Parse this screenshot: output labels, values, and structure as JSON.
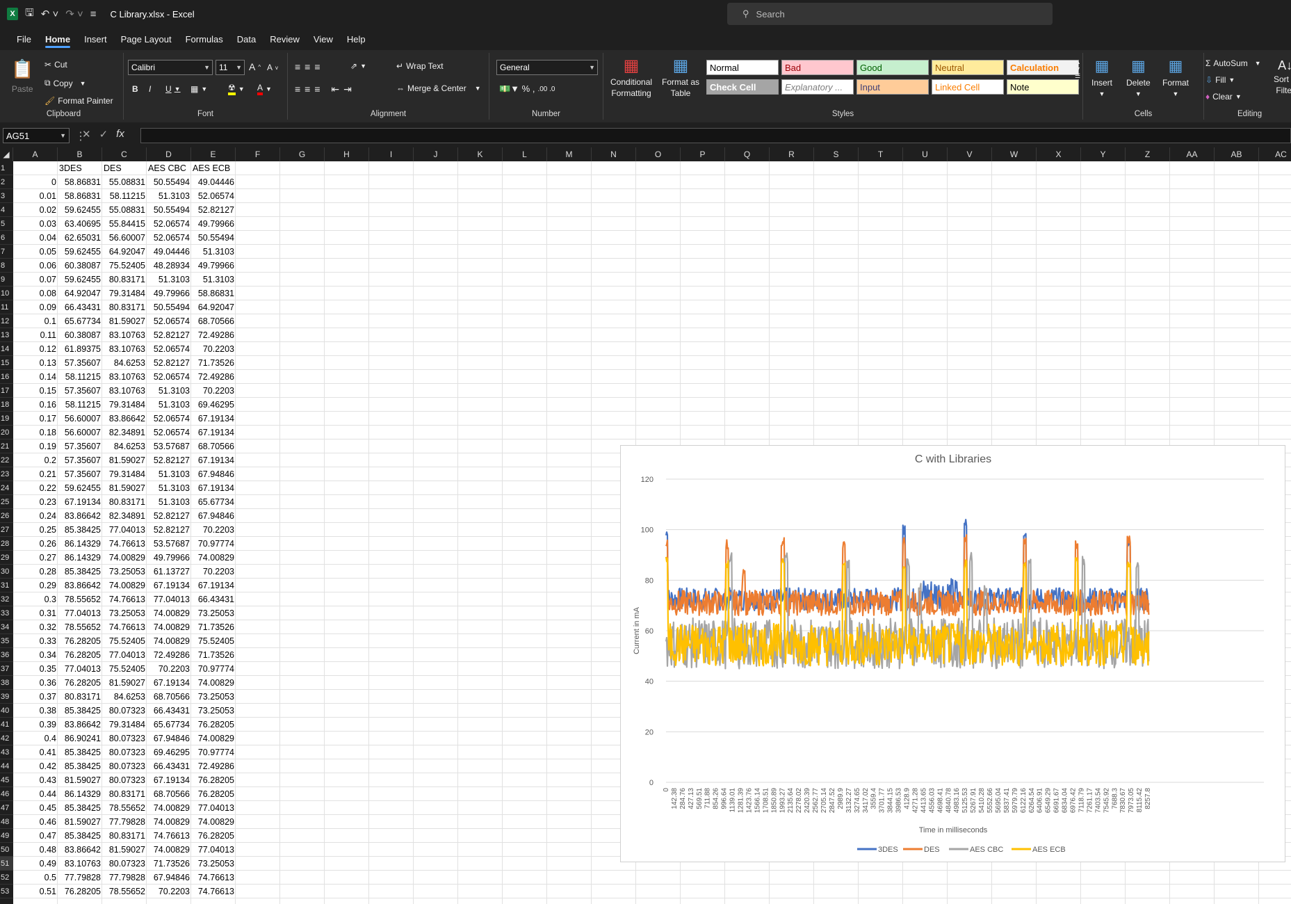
{
  "titlebar": {
    "file_name": "C Library.xlsx  -  Excel",
    "search_placeholder": "Search"
  },
  "menu": [
    "File",
    "Home",
    "Insert",
    "Page Layout",
    "Formulas",
    "Data",
    "Review",
    "View",
    "Help"
  ],
  "ribbon": {
    "clipboard": {
      "paste": "Paste",
      "cut": "Cut",
      "copy": "Copy",
      "format_painter": "Format Painter",
      "label": "Clipboard"
    },
    "font": {
      "family": "Calibri",
      "size": "11",
      "label": "Font"
    },
    "alignment": {
      "wrap": "Wrap Text",
      "merge": "Merge & Center",
      "label": "Alignment"
    },
    "number": {
      "format": "General",
      "label": "Number"
    },
    "styles": {
      "conditional": [
        "Conditional",
        "Formatting"
      ],
      "format_table": [
        "Format as",
        "Table"
      ],
      "boxes": [
        {
          "text": "Normal",
          "bg": "#ffffff",
          "fg": "#000000"
        },
        {
          "text": "Bad",
          "bg": "#ffc7ce",
          "fg": "#9c0006"
        },
        {
          "text": "Good",
          "bg": "#c6efce",
          "fg": "#006100"
        },
        {
          "text": "Neutral",
          "bg": "#ffeb9c",
          "fg": "#9c5700"
        },
        {
          "text": "Calculation",
          "bg": "#f2f2f2",
          "fg": "#fa7d00"
        },
        {
          "text": "Check Cell",
          "bg": "#a5a5a5",
          "fg": "#ffffff"
        },
        {
          "text": "Explanatory ...",
          "bg": "#ffffff",
          "fg": "#7f7f7f"
        },
        {
          "text": "Input",
          "bg": "#ffcc99",
          "fg": "#3f3f76"
        },
        {
          "text": "Linked Cell",
          "bg": "#ffffff",
          "fg": "#fa7d00"
        },
        {
          "text": "Note",
          "bg": "#ffffcc",
          "fg": "#000000"
        }
      ],
      "label": "Styles"
    },
    "cells": {
      "insert": "Insert",
      "delete": "Delete",
      "format": "Format",
      "label": "Cells"
    },
    "editing": {
      "autosum": "AutoSum",
      "fill": "Fill",
      "clear": "Clear",
      "sort": "Sort &",
      "filter": "Filter",
      "label": "Editing"
    }
  },
  "namebox": "AG51",
  "columns": [
    "A",
    "B",
    "C",
    "D",
    "E",
    "F",
    "G",
    "H",
    "I",
    "J",
    "K",
    "L",
    "M",
    "N",
    "O",
    "P",
    "Q",
    "R",
    "S",
    "T",
    "U",
    "V",
    "W",
    "X",
    "Y",
    "Z",
    "AA",
    "AB",
    "AC"
  ],
  "rownums": [
    1,
    2,
    3,
    4,
    5,
    6,
    7,
    8,
    9,
    10,
    11,
    12,
    13,
    14,
    15,
    16,
    17,
    18,
    19,
    20,
    21,
    22,
    23,
    24,
    25,
    26,
    27,
    28,
    29,
    30,
    31,
    32,
    33,
    34,
    35,
    36,
    37,
    38,
    39,
    40,
    41,
    42,
    43,
    44,
    45,
    46,
    47,
    48,
    49,
    50,
    51,
    52,
    53
  ],
  "selected_row": 51,
  "headers": [
    "",
    "3DES",
    "DES",
    "AES CBC",
    "AES ECB"
  ],
  "rows": [
    [
      "0",
      "58.86831",
      "55.08831",
      "50.55494",
      "49.04446"
    ],
    [
      "0.01",
      "58.86831",
      "58.11215",
      "51.3103",
      "52.06574"
    ],
    [
      "0.02",
      "59.62455",
      "55.08831",
      "50.55494",
      "52.82127"
    ],
    [
      "0.03",
      "63.40695",
      "55.84415",
      "52.06574",
      "49.79966"
    ],
    [
      "0.04",
      "62.65031",
      "56.60007",
      "52.06574",
      "50.55494"
    ],
    [
      "0.05",
      "59.62455",
      "64.92047",
      "49.04446",
      "51.3103"
    ],
    [
      "0.06",
      "60.38087",
      "75.52405",
      "48.28934",
      "49.79966"
    ],
    [
      "0.07",
      "59.62455",
      "80.83171",
      "51.3103",
      "51.3103"
    ],
    [
      "0.08",
      "64.92047",
      "79.31484",
      "49.79966",
      "58.86831"
    ],
    [
      "0.09",
      "66.43431",
      "80.83171",
      "50.55494",
      "64.92047"
    ],
    [
      "0.1",
      "65.67734",
      "81.59027",
      "52.06574",
      "68.70566"
    ],
    [
      "0.11",
      "60.38087",
      "83.10763",
      "52.82127",
      "72.49286"
    ],
    [
      "0.12",
      "61.89375",
      "83.10763",
      "52.06574",
      "70.2203"
    ],
    [
      "0.13",
      "57.35607",
      "84.6253",
      "52.82127",
      "71.73526"
    ],
    [
      "0.14",
      "58.11215",
      "83.10763",
      "52.06574",
      "72.49286"
    ],
    [
      "0.15",
      "57.35607",
      "83.10763",
      "51.3103",
      "70.2203"
    ],
    [
      "0.16",
      "58.11215",
      "79.31484",
      "51.3103",
      "69.46295"
    ],
    [
      "0.17",
      "56.60007",
      "83.86642",
      "52.06574",
      "67.19134"
    ],
    [
      "0.18",
      "56.60007",
      "82.34891",
      "52.06574",
      "67.19134"
    ],
    [
      "0.19",
      "57.35607",
      "84.6253",
      "53.57687",
      "68.70566"
    ],
    [
      "0.2",
      "57.35607",
      "81.59027",
      "52.82127",
      "67.19134"
    ],
    [
      "0.21",
      "57.35607",
      "79.31484",
      "51.3103",
      "67.94846"
    ],
    [
      "0.22",
      "59.62455",
      "81.59027",
      "51.3103",
      "67.19134"
    ],
    [
      "0.23",
      "67.19134",
      "80.83171",
      "51.3103",
      "65.67734"
    ],
    [
      "0.24",
      "83.86642",
      "82.34891",
      "52.82127",
      "67.94846"
    ],
    [
      "0.25",
      "85.38425",
      "77.04013",
      "52.82127",
      "70.2203"
    ],
    [
      "0.26",
      "86.14329",
      "74.76613",
      "53.57687",
      "70.97774"
    ],
    [
      "0.27",
      "86.14329",
      "74.00829",
      "49.79966",
      "74.00829"
    ],
    [
      "0.28",
      "85.38425",
      "73.25053",
      "61.13727",
      "70.2203"
    ],
    [
      "0.29",
      "83.86642",
      "74.00829",
      "67.19134",
      "67.19134"
    ],
    [
      "0.3",
      "78.55652",
      "74.76613",
      "77.04013",
      "66.43431"
    ],
    [
      "0.31",
      "77.04013",
      "73.25053",
      "74.00829",
      "73.25053"
    ],
    [
      "0.32",
      "78.55652",
      "74.76613",
      "74.00829",
      "71.73526"
    ],
    [
      "0.33",
      "76.28205",
      "75.52405",
      "74.00829",
      "75.52405"
    ],
    [
      "0.34",
      "76.28205",
      "77.04013",
      "72.49286",
      "71.73526"
    ],
    [
      "0.35",
      "77.04013",
      "75.52405",
      "70.2203",
      "70.97774"
    ],
    [
      "0.36",
      "76.28205",
      "81.59027",
      "67.19134",
      "74.00829"
    ],
    [
      "0.37",
      "80.83171",
      "84.6253",
      "68.70566",
      "73.25053"
    ],
    [
      "0.38",
      "85.38425",
      "80.07323",
      "66.43431",
      "73.25053"
    ],
    [
      "0.39",
      "83.86642",
      "79.31484",
      "65.67734",
      "76.28205"
    ],
    [
      "0.4",
      "86.90241",
      "80.07323",
      "67.94846",
      "74.00829"
    ],
    [
      "0.41",
      "85.38425",
      "80.07323",
      "69.46295",
      "70.97774"
    ],
    [
      "0.42",
      "85.38425",
      "80.07323",
      "66.43431",
      "72.49286"
    ],
    [
      "0.43",
      "81.59027",
      "80.07323",
      "67.19134",
      "76.28205"
    ],
    [
      "0.44",
      "86.14329",
      "80.83171",
      "68.70566",
      "76.28205"
    ],
    [
      "0.45",
      "85.38425",
      "78.55652",
      "74.00829",
      "77.04013"
    ],
    [
      "0.46",
      "81.59027",
      "77.79828",
      "74.00829",
      "74.00829"
    ],
    [
      "0.47",
      "85.38425",
      "80.83171",
      "74.76613",
      "76.28205"
    ],
    [
      "0.48",
      "83.86642",
      "81.59027",
      "74.00829",
      "77.04013"
    ],
    [
      "0.49",
      "83.10763",
      "80.07323",
      "71.73526",
      "73.25053"
    ],
    [
      "0.5",
      "77.79828",
      "77.79828",
      "67.94846",
      "74.76613"
    ],
    [
      "0.51",
      "76.28205",
      "78.55652",
      "70.2203",
      "74.76613"
    ]
  ],
  "chart_data": {
    "type": "line",
    "title": "C with Libraries",
    "xlabel": "Time in milliseconds",
    "ylabel": "Current in mA",
    "ylim": [
      0,
      120
    ],
    "yticks": [
      0,
      20,
      40,
      60,
      80,
      100,
      120
    ],
    "grid": true,
    "legend_position": "bottom",
    "x_tick_labels": [
      "0",
      "142.38",
      "284.76",
      "427.13",
      "569.51",
      "711.88",
      "854.26",
      "996.64",
      "1139.01",
      "1281.39",
      "1423.76",
      "1566.14",
      "1708.51",
      "1850.89",
      "1993.27",
      "2135.64",
      "2278.02",
      "2420.39",
      "2562.77",
      "2705.14",
      "2847.52",
      "2989.9",
      "3132.27",
      "3274.65",
      "3417.02",
      "3559.4",
      "3701.77",
      "3844.15",
      "3986.53",
      "4128.9",
      "4271.28",
      "4413.65",
      "4556.03",
      "4698.41",
      "4840.78",
      "4983.16",
      "5125.53",
      "5267.91",
      "5410.28",
      "5552.66",
      "5695.04",
      "5837.41",
      "5979.79",
      "6122.16",
      "6264.54",
      "6406.91",
      "6549.29",
      "6691.67",
      "6834.04",
      "6976.42",
      "7118.79",
      "7261.17",
      "7403.54",
      "7545.92",
      "7688.3",
      "7830.67",
      "7973.05",
      "8115.42",
      "8257.8"
    ],
    "x_range": [
      0,
      8400
    ],
    "series": [
      {
        "name": "3DES",
        "color": "#4472c4",
        "baseline": [
          68,
          77
        ],
        "spikes": [
          [
            0,
            100
          ],
          [
            4080,
            102
          ],
          [
            5130,
            104
          ],
          [
            6150,
            99
          ],
          [
            7930,
            97
          ]
        ],
        "elevated_region": [
          4400,
          5000,
          81
        ]
      },
      {
        "name": "DES",
        "color": "#ed7d31",
        "baseline": [
          66,
          76
        ],
        "spikes": [
          [
            0,
            96
          ],
          [
            1050,
            96
          ],
          [
            2000,
            97
          ],
          [
            3050,
            96
          ],
          [
            4080,
            97
          ],
          [
            5130,
            98
          ],
          [
            6150,
            97
          ],
          [
            7040,
            96
          ],
          [
            7930,
            98
          ],
          [
            1330,
            85
          ]
        ]
      },
      {
        "name": "AES CBC",
        "color": "#a5a5a5",
        "baseline": [
          45,
          65
        ],
        "spikes": [
          [
            1100,
            91
          ],
          [
            2060,
            91
          ],
          [
            3120,
            88
          ],
          [
            4150,
            89
          ],
          [
            5230,
            91
          ],
          [
            6230,
            89
          ],
          [
            7160,
            90
          ],
          [
            8080,
            88
          ],
          [
            4350,
            80
          ],
          [
            5470,
            78
          ]
        ]
      },
      {
        "name": "AES ECB",
        "color": "#ffc000",
        "baseline": [
          46,
          63
        ],
        "spikes": [
          [
            0,
            90
          ],
          [
            1050,
            88
          ],
          [
            2000,
            89
          ],
          [
            3050,
            88
          ],
          [
            4080,
            88
          ],
          [
            5130,
            88
          ],
          [
            6150,
            88
          ],
          [
            7040,
            90
          ],
          [
            7930,
            88
          ]
        ]
      }
    ]
  }
}
